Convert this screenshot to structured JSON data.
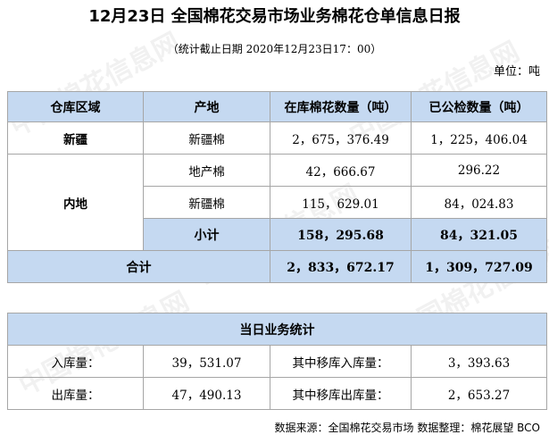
{
  "title": "12月23日 全国棉花交易市场业务棉花仓单信息日报",
  "subtitle": "（统计截止日期 2020年12月23日17：00）",
  "unit": "单位：吨",
  "main_table": {
    "headers": [
      "仓库区域",
      "产地",
      "在库棉花数量（吨）",
      "已公检数量（吨）"
    ],
    "xinjiang": {
      "region": "新疆",
      "origin": "新疆棉",
      "stock": "2，675，376.49",
      "inspected": "1，225，406.04"
    },
    "inland": {
      "region": "内地",
      "local": {
        "origin": "地产棉",
        "stock": "42，666.67",
        "inspected": "296.22"
      },
      "xj": {
        "origin": "新疆棉",
        "stock": "115，629.01",
        "inspected": "84，024.83"
      },
      "subtotal": {
        "label": "小计",
        "stock": "158，295.68",
        "inspected": "84，321.05"
      }
    },
    "total": {
      "label": "合计",
      "stock": "2，833，672.17",
      "inspected": "1，309，727.09"
    }
  },
  "daily_table": {
    "header": "当日业务统计",
    "in_label": "入库量：",
    "in_value": "39，531.07",
    "transfer_in_label": "其中移库入库量：",
    "transfer_in_value": "3，393.63",
    "out_label": "出库量：",
    "out_value": "47，490.13",
    "transfer_out_label": "其中移库出库量：",
    "transfer_out_value": "2，653.27"
  },
  "footer": "数据来源：全国棉花交易市场 数据整理：棉花展望 BCO",
  "watermark": "中国棉花信息网"
}
